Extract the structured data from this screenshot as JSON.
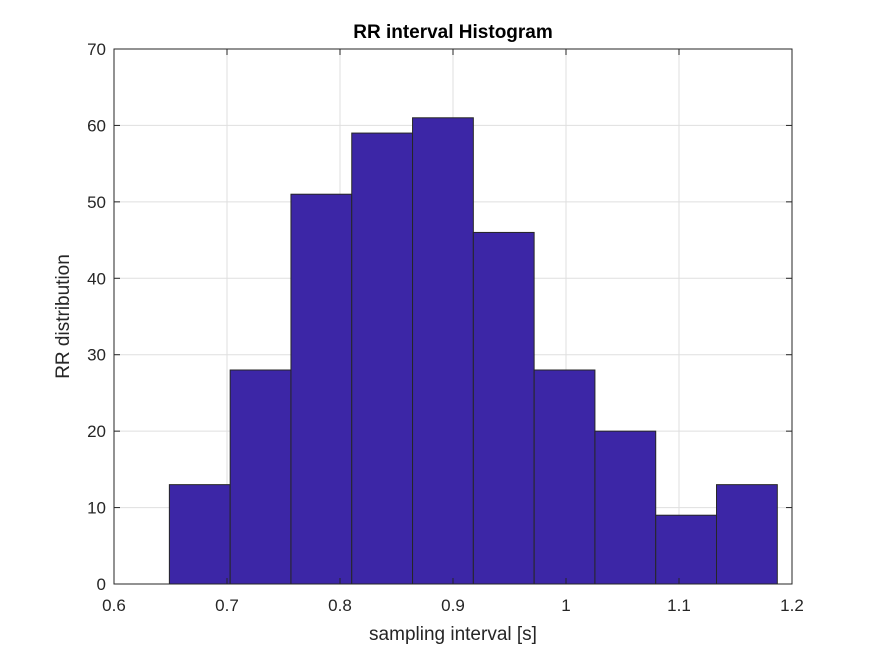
{
  "chart_data": {
    "type": "bar",
    "title": "RR interval Histogram",
    "xlabel": "sampling interval [s]",
    "ylabel": "RR distribution",
    "xlim": [
      0.6,
      1.2
    ],
    "ylim": [
      0,
      70
    ],
    "xticks": [
      0.6,
      0.7,
      0.8,
      0.9,
      1.0,
      1.1,
      1.2
    ],
    "xtick_labels": [
      "0.6",
      "0.7",
      "0.8",
      "0.9",
      "1",
      "1.1",
      "1.2"
    ],
    "yticks": [
      0,
      10,
      20,
      30,
      40,
      50,
      60,
      70
    ],
    "ytick_labels": [
      "0",
      "10",
      "20",
      "30",
      "40",
      "50",
      "60",
      "70"
    ],
    "bin_edges": [
      0.649,
      0.7028,
      0.7566,
      0.8104,
      0.8642,
      0.918,
      0.9718,
      1.0256,
      1.0794,
      1.1332,
      1.187
    ],
    "values": [
      13,
      28,
      51,
      59,
      61,
      46,
      28,
      20,
      9,
      13
    ],
    "grid": true,
    "bar_color": "#3c26a6",
    "edge_color": "#262626"
  }
}
